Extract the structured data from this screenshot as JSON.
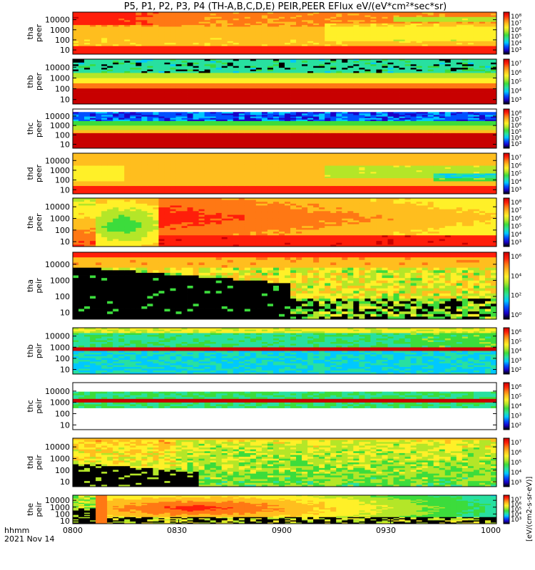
{
  "chart_data": {
    "type": "heatmap",
    "title": "P5, P1, P2, P3, P4 (TH-A,B,C,D,E) PEIR,PEER EFlux eV/(eV*cm²*sec*sr)",
    "xaxis": {
      "ticks": [
        "0800",
        "0830",
        "0900",
        "0930",
        "1000"
      ],
      "range_hhmm": [
        "0800",
        "1000"
      ],
      "label_line1": "hhmm",
      "label_line2": "2021 Nov 14"
    },
    "y_scale": "log",
    "colorbar_units": "[eV/(cm2-s-sr-eV)]",
    "panels": [
      {
        "id": "tha_peer",
        "probe": "tha",
        "species": "peer",
        "yticks": [
          "10000",
          "1000",
          "100",
          "10"
        ],
        "cbar_ticks": [
          "10⁸",
          "10⁷",
          "10⁶",
          "10⁵",
          "10⁴",
          "10³"
        ],
        "pattern": "electron-hot"
      },
      {
        "id": "thb_peer",
        "probe": "thb",
        "species": "peer",
        "yticks": [
          "10000",
          "1000",
          "100",
          "10"
        ],
        "cbar_ticks": [
          "10⁷",
          "10⁶",
          "10⁵",
          "10⁴",
          "10³"
        ],
        "pattern": "layered-stripes"
      },
      {
        "id": "thc_peer",
        "probe": "thc",
        "species": "peer",
        "yticks": [
          "10000",
          "1000",
          "100",
          "10"
        ],
        "cbar_ticks": [
          "10⁸",
          "10⁷",
          "10⁶",
          "10⁵",
          "10⁴",
          "10³"
        ],
        "pattern": "layered-stripes-blue"
      },
      {
        "id": "thd_peer",
        "probe": "thd",
        "species": "peer",
        "yticks": [
          "10000",
          "1000",
          "100",
          "10"
        ],
        "cbar_ticks": [
          "10⁷",
          "10⁶",
          "10⁵",
          "10⁴",
          "10³"
        ],
        "pattern": "electron-warm"
      },
      {
        "id": "the_peer",
        "probe": "the",
        "species": "peer",
        "yticks": [
          "10000",
          "1000",
          "100",
          "10"
        ],
        "cbar_ticks": [
          "10⁸",
          "10⁷",
          "10⁶",
          "10⁵",
          "10⁴",
          "10³"
        ],
        "pattern": "electron-event"
      },
      {
        "id": "tha_peir",
        "probe": "tha",
        "species": "peir",
        "yticks": [
          "10000",
          "1000",
          "100",
          "10"
        ],
        "cbar_ticks": [
          "10⁶",
          "10⁴",
          "10²",
          "10⁰"
        ],
        "pattern": "ion-dropout"
      },
      {
        "id": "thb_peir",
        "probe": "thb",
        "species": "peir",
        "yticks": [
          "10000",
          "1000",
          "100",
          "10"
        ],
        "cbar_ticks": [
          "10⁶",
          "10⁵",
          "10⁴",
          "10³",
          "10²"
        ],
        "pattern": "ion-cold-band"
      },
      {
        "id": "thc_peir",
        "probe": "thc",
        "species": "peir",
        "yticks": [
          "10000",
          "1000",
          "100",
          "10"
        ],
        "cbar_ticks": [
          "10⁶",
          "10⁵",
          "10⁴",
          "10³",
          "10²"
        ],
        "pattern": "ion-narrow"
      },
      {
        "id": "thd_peir",
        "probe": "thd",
        "species": "peir",
        "yticks": [
          "10000",
          "1000",
          "100",
          "10"
        ],
        "cbar_ticks": [
          "10⁷",
          "10⁶",
          "10⁵",
          "10⁴",
          "10³"
        ],
        "pattern": "ion-noisy"
      },
      {
        "id": "the_peir",
        "probe": "the",
        "species": "peir",
        "yticks": [
          "10000",
          "1000",
          "100",
          "10"
        ],
        "cbar_ticks": [
          "10⁷",
          "10⁶",
          "10⁵",
          "10⁴",
          "10³"
        ],
        "pattern": "ion-enhance"
      }
    ],
    "palette": [
      "#000000",
      "#1a00c8",
      "#0050ff",
      "#00c8ff",
      "#28e0a0",
      "#3cdc3c",
      "#b4e628",
      "#fff028",
      "#ffbe1e",
      "#ff7814",
      "#ff1e0a",
      "#c80000"
    ]
  }
}
